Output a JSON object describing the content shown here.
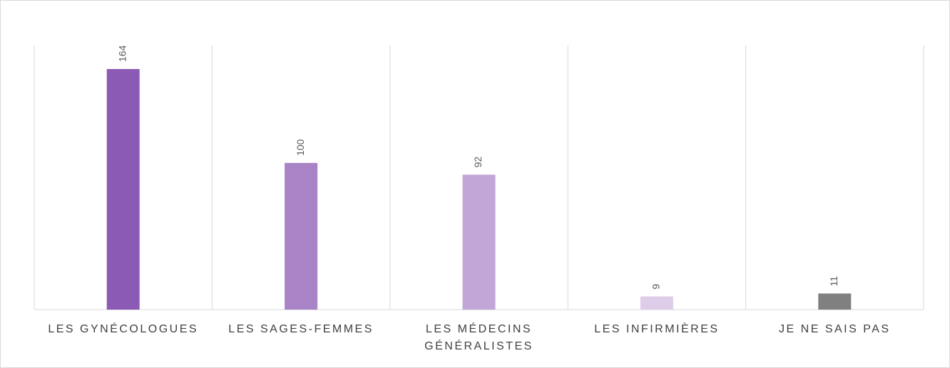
{
  "chart_data": {
    "type": "bar",
    "categories": [
      "LES GYNÉCOLOGUES",
      "LES SAGES-FEMMES",
      "LES MÉDECINS GÉNÉRALISTES",
      "LES INFIRMIÈRES",
      "JE NE SAIS PAS"
    ],
    "values": [
      164,
      100,
      92,
      9,
      11
    ],
    "colors": [
      "#8b5ab5",
      "#a884c6",
      "#c2a6d7",
      "#ddcde9",
      "#808080"
    ],
    "ylim": [
      0,
      180
    ]
  }
}
